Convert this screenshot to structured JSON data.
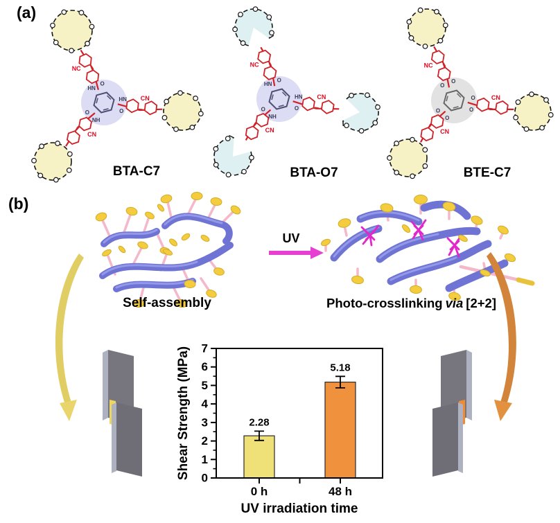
{
  "panel_a": {
    "label": "(a)",
    "molecules": [
      {
        "name": "BTA-C7",
        "macrocycle_style": "closed",
        "macrocycle_fill": "#f7f2c6",
        "highlight": "#dcdcf4",
        "core_stroke": "#4e4e70",
        "linker": "amide",
        "linker_labels": [
          "HN",
          "HN",
          "NH"
        ],
        "carbonyl_label": "O",
        "nitrile_labels": [
          "NC",
          "CN",
          "CN"
        ]
      },
      {
        "name": "BTA-O7",
        "macrocycle_style": "open",
        "macrocycle_fill": "#def0f1",
        "highlight": "#dcdcf4",
        "core_stroke": "#4e4e70",
        "linker": "amide",
        "linker_labels": [
          "HN",
          "HN",
          "NH"
        ],
        "carbonyl_label": "O",
        "nitrile_labels": [
          "NC",
          "CN",
          "CN"
        ]
      },
      {
        "name": "BTE-C7",
        "macrocycle_style": "closed",
        "macrocycle_fill": "#f7f2c6",
        "highlight": "#e2e2e2",
        "core_stroke": "#666666",
        "linker": "ester",
        "linker_labels": [
          "O",
          "O",
          "O"
        ],
        "carbonyl_label": "O",
        "nitrile_labels": [
          "NC",
          "CN",
          "CN"
        ]
      }
    ],
    "colors": {
      "arm_red": "#cf2127",
      "nitrile_red": "#e1071f",
      "macrocycle_stroke": "#151515"
    }
  },
  "panel_b": {
    "label": "(b)",
    "self_assembly_label": "Self-assembly",
    "uv_label": "UV",
    "crosslink_label": {
      "prefix": "Photo-crosslinking",
      "italic": "via",
      "suffix": "[2+2]"
    },
    "colors": {
      "fiber": "#6f74d4",
      "fiber_sheen": "#9da3ee",
      "pendant_stick": "#f4b8ca",
      "pendant_disc": "#f3cd3d",
      "crosslink_magenta": "#e326cb",
      "uv_arrow": "#e63fd1",
      "left_curved_arrow": "#e0cd64",
      "right_curved_arrow": "#d2853a",
      "plate_front": "#77767e",
      "plate_side": "#aeb2c0",
      "adhesive_left": "#efd75f",
      "adhesive_right": "#ee8b33"
    }
  },
  "chart_data": {
    "type": "bar",
    "title": "",
    "categories": [
      "0 h",
      "48 h"
    ],
    "values": [
      2.28,
      5.18
    ],
    "errors": [
      0.25,
      0.31
    ],
    "value_labels": [
      "2.28",
      "5.18"
    ],
    "bar_colors": [
      "#efe178",
      "#f0913e"
    ],
    "xlabel": "UV irradiation time",
    "ylabel": "Shear Strength (MPa)",
    "ylim": [
      0,
      7
    ],
    "ytick_step": 1,
    "yminor_step": 0.5,
    "grid": false,
    "legend_position": "none"
  }
}
